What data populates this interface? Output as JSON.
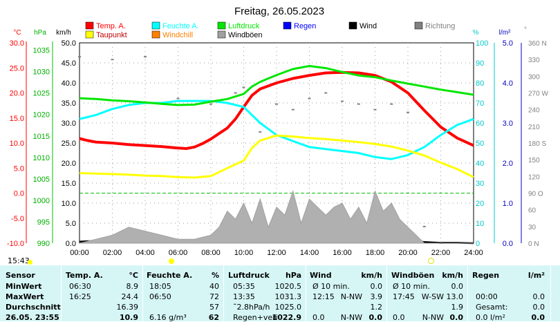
{
  "header": {
    "title": "Freitag, 26.05.2023",
    "unit_labels": [
      "°C",
      "hPa",
      "km/h",
      "%",
      "l/m²",
      "°"
    ]
  },
  "legend": [
    {
      "label": "Temp. A.",
      "color": "#ff0000"
    },
    {
      "label": "Feuchte A.",
      "color": "#00ffff"
    },
    {
      "label": "Luftdruck",
      "color": "#00e600"
    },
    {
      "label": "Regen",
      "color": "#0000ff"
    },
    {
      "label": "Wind",
      "color": "#000000"
    },
    {
      "label": "Richtung",
      "color": "#808080"
    },
    {
      "label": "Taupunkt",
      "color": "#ffff00"
    },
    {
      "label": "Windchill",
      "color": "#ff8000"
    },
    {
      "label": "Windböen",
      "color": "#a0a0a0"
    }
  ],
  "chart_data": {
    "type": "line",
    "x_ticks": [
      "00:00",
      "02:00",
      "04:00",
      "06:00",
      "08:00",
      "10:00",
      "12:00",
      "14:00",
      "16:00",
      "18:00",
      "20:00",
      "22:00",
      "24:00"
    ],
    "axes": {
      "temp_c": {
        "range": [
          -10,
          30
        ],
        "ticks": [
          "30.0",
          "25.0",
          "20.0",
          "15.0",
          "10.0",
          "5.0",
          "0.0",
          "-5.0",
          "-10.0"
        ],
        "color": "#ff0000"
      },
      "pressure_hpa": {
        "range": [
          990,
          1036.7
        ],
        "ticks": [
          "1035",
          "1030",
          "1025",
          "1020",
          "1015",
          "1010",
          "1005",
          "1000",
          "995",
          "990"
        ],
        "color": "#00c000"
      },
      "wind_kmh": {
        "range": [
          0,
          50
        ],
        "ticks": [
          "50.0",
          "45.0",
          "40.0",
          "35.0",
          "30.0",
          "25.0",
          "20.0",
          "15.0",
          "10.0",
          "5.0",
          "0.0"
        ],
        "color": "#000000"
      },
      "humidity_pct": {
        "range": [
          0,
          100
        ],
        "ticks": [
          "100",
          "90",
          "80",
          "70",
          "60",
          "50",
          "40",
          "30",
          "20",
          "10",
          "0"
        ],
        "color": "#00c8c8"
      },
      "rain_lm2": {
        "range": [
          0,
          5
        ],
        "ticks": [
          "5.0",
          "4.0",
          "3.0",
          "2.0",
          "1.0",
          "0.0"
        ],
        "color": "#0000c0"
      },
      "direction_deg": {
        "range": [
          0,
          360
        ],
        "ticks": [
          "360 N",
          "330",
          "300",
          "270 W",
          "240",
          "210",
          "180 S",
          "150",
          "120",
          "90 O",
          "60",
          "30",
          "0 N"
        ],
        "color": "#808080"
      }
    },
    "series": [
      {
        "name": "Temp. A.",
        "axis": "temp_c",
        "color": "#ff0000",
        "x": [
          0,
          0.5,
          1,
          2,
          3,
          4,
          5,
          6,
          6.5,
          7,
          7.5,
          8,
          8.5,
          9,
          9.5,
          10,
          10.5,
          11,
          12,
          13,
          14,
          15,
          16,
          17,
          18,
          19,
          20,
          21,
          22,
          23,
          24
        ],
        "y": [
          10.9,
          10.5,
          10.2,
          10,
          9.7,
          9.5,
          9.3,
          9,
          8.9,
          9.2,
          9.9,
          10.8,
          11.9,
          13,
          14.8,
          17.2,
          19.5,
          20.8,
          22,
          22.9,
          23.5,
          24,
          24.1,
          24,
          23.5,
          22.2,
          20,
          16.5,
          13.2,
          11,
          9.5
        ]
      },
      {
        "name": "Feuchte A.",
        "axis": "humidity_pct",
        "color": "#00ffff",
        "x": [
          0,
          1,
          2,
          3,
          4,
          5,
          6,
          7,
          8,
          9,
          10,
          10.5,
          11,
          11.5,
          12,
          13,
          14,
          15,
          16,
          17,
          18,
          19,
          20,
          21,
          22,
          23,
          24
        ],
        "y": [
          62,
          64,
          67,
          69,
          70,
          70,
          71,
          71,
          71,
          70,
          68,
          64,
          60,
          57,
          54,
          51,
          48,
          47,
          46,
          45,
          43,
          42,
          44,
          48,
          54,
          59,
          62
        ]
      },
      {
        "name": "Luftdruck",
        "axis": "pressure_hpa",
        "color": "#00e600",
        "x": [
          0,
          1,
          2,
          3,
          4,
          5,
          6,
          7,
          8,
          9,
          10,
          10.5,
          11,
          12,
          13,
          14,
          15,
          16,
          17,
          18,
          19,
          20,
          21,
          22,
          23,
          24
        ],
        "y": [
          1023.8,
          1023.6,
          1023.3,
          1023.1,
          1022.8,
          1022.5,
          1022.2,
          1022.3,
          1023,
          1023.6,
          1024.8,
          1026.5,
          1027.6,
          1029.2,
          1030.6,
          1031.3,
          1030.8,
          1029.9,
          1029.1,
          1028.7,
          1027.9,
          1027.2,
          1026.5,
          1025.8,
          1025.2,
          1024.6
        ]
      },
      {
        "name": "Taupunkt",
        "axis": "temp_c",
        "color": "#ffff00",
        "x": [
          0,
          1,
          2,
          3,
          4,
          5,
          6,
          7,
          8,
          9,
          10,
          10.5,
          11,
          12,
          13,
          14,
          15,
          16,
          17,
          18,
          19,
          20,
          21,
          22,
          23,
          24
        ],
        "y": [
          4,
          3.9,
          3.8,
          3.7,
          3.5,
          3.4,
          3.2,
          3.1,
          3.4,
          5,
          6.5,
          9,
          10.5,
          11.5,
          11.3,
          11,
          10.8,
          10.5,
          10.2,
          9.8,
          9.3,
          8.5,
          7.5,
          6.1,
          4.8,
          3.2
        ]
      },
      {
        "name": "Wind",
        "axis": "wind_kmh",
        "color": "#000000",
        "x": [
          0,
          1,
          2,
          3,
          4,
          5,
          6,
          7,
          8,
          9,
          9.5,
          10,
          11,
          12,
          13,
          14,
          15,
          16,
          17,
          18,
          19,
          20,
          21,
          22,
          23,
          24
        ],
        "y": [
          0.4,
          0.6,
          1,
          1.5,
          1.2,
          0.8,
          0.5,
          0.3,
          0.6,
          1.2,
          2,
          2.5,
          3.2,
          3.6,
          3,
          2.8,
          2.6,
          2.4,
          2.3,
          2.6,
          2.1,
          1,
          0.3,
          0.1,
          0.1,
          0
        ]
      },
      {
        "name": "Windböen",
        "axis": "wind_kmh",
        "color": "#a0a0a0",
        "x": [
          0,
          1,
          2,
          3,
          4,
          5,
          6,
          7,
          8,
          8.5,
          9,
          9.5,
          10,
          10.5,
          11,
          11.5,
          12,
          12.5,
          13,
          13.5,
          14,
          14.5,
          15,
          15.5,
          16,
          16.5,
          17,
          17.5,
          18,
          18.5,
          19,
          19.5,
          20,
          20.5,
          21,
          22,
          23,
          24
        ],
        "y": [
          0,
          1,
          2,
          4,
          3,
          2,
          1,
          1,
          2,
          4,
          8,
          6,
          10,
          5,
          11,
          4,
          9,
          7,
          13,
          5,
          11,
          9,
          7,
          9,
          10,
          6,
          9,
          5,
          13,
          8,
          10,
          6,
          4,
          2,
          0,
          0,
          0,
          0
        ]
      },
      {
        "name": "Richtung",
        "axis": "direction_deg",
        "color": "#808080",
        "x": [
          0,
          2,
          4,
          6,
          8,
          9.5,
          10,
          11,
          12,
          13,
          14,
          15,
          16,
          17,
          18,
          19,
          20,
          21,
          22
        ],
        "y": [
          335,
          330,
          335,
          260,
          250,
          270,
          280,
          200,
          250,
          240,
          260,
          270,
          255,
          250,
          240,
          250,
          235,
          30,
          0
        ]
      }
    ]
  },
  "time_row": {
    "left": "15:43",
    "mid_time": "06:00",
    "right_time": "22:00"
  },
  "table": {
    "headers": {
      "sensor": "Sensor",
      "temp": "Temp. A.",
      "temp_unit": "°C",
      "hum": "Feuchte A.",
      "hum_unit": "%",
      "press": "Luftdruck",
      "press_unit": "hPa",
      "wind": "Wind",
      "wind_unit": "km/h",
      "gust": "Windböen",
      "gust_unit": "km/h",
      "rain": "Regen",
      "rain_unit": "l/m²"
    },
    "rows": [
      {
        "label": "MinWert",
        "t_time": "06:30",
        "t_val": "8.9",
        "h_time": "18:05",
        "h_val": "40",
        "p_time": "05:35",
        "p_val": "1020.5",
        "w_time": "Ø 10 min.",
        "w_dir": "",
        "w_val": "0.0",
        "g_time": "Ø 10 min.",
        "g_dir": "",
        "g_val": "0.0",
        "r_time": "",
        "r_val": ""
      },
      {
        "label": "MaxWert",
        "t_time": "16:25",
        "t_val": "24.4",
        "h_time": "06:50",
        "h_val": "72",
        "p_time": "13:35",
        "p_val": "1031.3",
        "w_time": "12:15",
        "w_dir": "N-NW",
        "w_val": "3.9",
        "g_time": "17:45",
        "g_dir": "W-SW",
        "g_val": "13.0",
        "r_time": "00:00",
        "r_val": "0.0"
      },
      {
        "label": "Durchschnitt",
        "t_time": "",
        "t_val": "16.39",
        "h_time": "",
        "h_val": "57",
        "p_time": "˜2.8hPa/h",
        "p_val": "1025.0",
        "w_time": "",
        "w_dir": "",
        "w_val": "1.2",
        "g_time": "",
        "g_dir": "",
        "g_val": "1.9",
        "r_time": "Gesamt:",
        "r_val": "0.0"
      },
      {
        "label": "26.05. 23:55",
        "t_time": "",
        "t_val": "10.9",
        "h_time": "6.16 g/m³",
        "h_val": "62",
        "p_time": "Regen+veri",
        "p_val": "1022.9",
        "w_time": "0.0",
        "w_dir": "N-NW",
        "w_val": "0.0",
        "g_time": "0.0",
        "g_dir": "N-NW",
        "g_val": "0.0",
        "r_time": "0.0 l/m²",
        "r_val": "0.0"
      }
    ]
  }
}
